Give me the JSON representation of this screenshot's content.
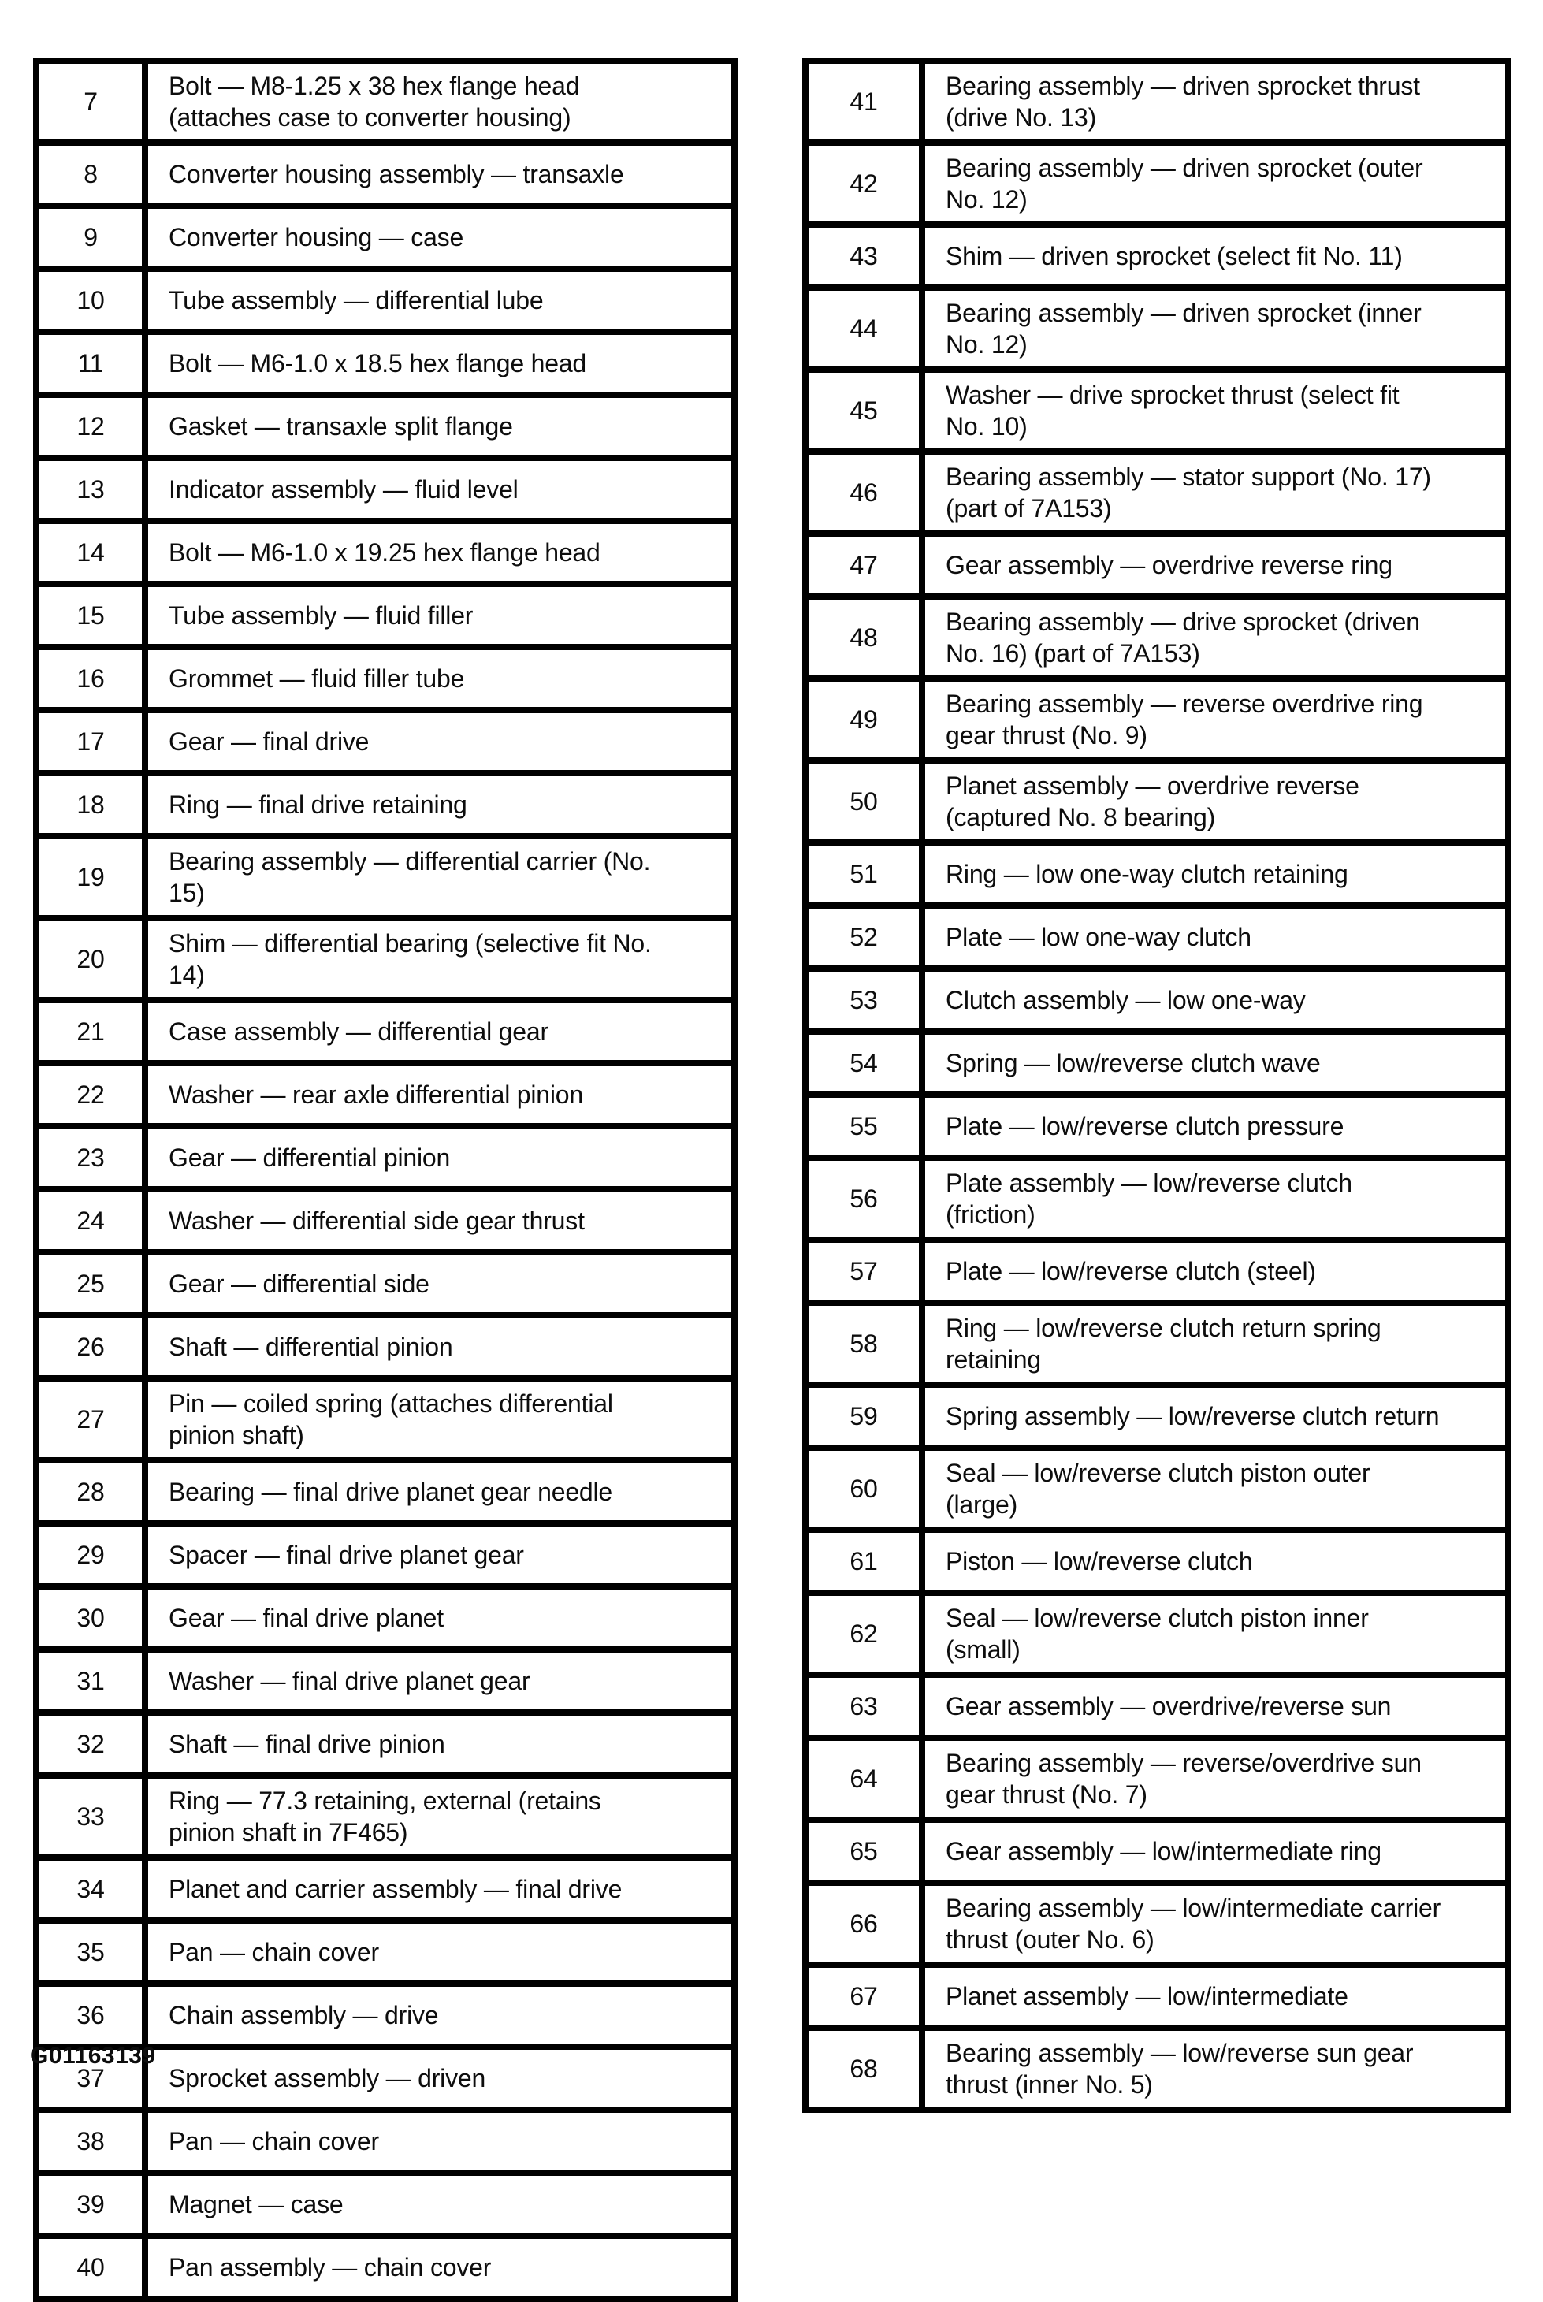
{
  "figure_id": "G01163139",
  "left_table": {
    "rows": [
      {
        "num": "7",
        "desc": "Bolt — M8-1.25 x 38 hex flange head\n(attaches case to converter housing)"
      },
      {
        "num": "8",
        "desc": "Converter housing assembly — transaxle"
      },
      {
        "num": "9",
        "desc": "Converter housing — case"
      },
      {
        "num": "10",
        "desc": "Tube assembly — differential lube"
      },
      {
        "num": "11",
        "desc": "Bolt — M6-1.0 x 18.5 hex flange head"
      },
      {
        "num": "12",
        "desc": "Gasket — transaxle split flange"
      },
      {
        "num": "13",
        "desc": "Indicator assembly — fluid level"
      },
      {
        "num": "14",
        "desc": "Bolt — M6-1.0 x 19.25 hex flange head"
      },
      {
        "num": "15",
        "desc": "Tube assembly — fluid filler"
      },
      {
        "num": "16",
        "desc": "Grommet — fluid filler tube"
      },
      {
        "num": "17",
        "desc": "Gear — final drive"
      },
      {
        "num": "18",
        "desc": "Ring — final drive retaining"
      },
      {
        "num": "19",
        "desc": "Bearing assembly — differential carrier (No.\n15)"
      },
      {
        "num": "20",
        "desc": "Shim — differential bearing (selective fit No.\n14)"
      },
      {
        "num": "21",
        "desc": "Case assembly — differential gear"
      },
      {
        "num": "22",
        "desc": "Washer — rear axle differential pinion"
      },
      {
        "num": "23",
        "desc": "Gear — differential pinion"
      },
      {
        "num": "24",
        "desc": "Washer — differential side gear thrust"
      },
      {
        "num": "25",
        "desc": "Gear — differential side"
      },
      {
        "num": "26",
        "desc": "Shaft — differential pinion"
      },
      {
        "num": "27",
        "desc": "Pin — coiled spring (attaches differential\npinion shaft)"
      },
      {
        "num": "28",
        "desc": "Bearing — final drive planet gear needle"
      },
      {
        "num": "29",
        "desc": "Spacer — final drive planet gear"
      },
      {
        "num": "30",
        "desc": "Gear — final drive planet"
      },
      {
        "num": "31",
        "desc": "Washer — final drive planet gear"
      },
      {
        "num": "32",
        "desc": "Shaft — final drive pinion"
      },
      {
        "num": "33",
        "desc": "Ring — 77.3 retaining, external (retains\npinion shaft in 7F465)"
      },
      {
        "num": "34",
        "desc": "Planet and carrier assembly — final drive"
      },
      {
        "num": "35",
        "desc": "Pan — chain cover"
      },
      {
        "num": "36",
        "desc": "Chain assembly — drive"
      },
      {
        "num": "37",
        "desc": "Sprocket assembly — driven"
      },
      {
        "num": "38",
        "desc": "Pan — chain cover"
      },
      {
        "num": "39",
        "desc": "Magnet — case"
      },
      {
        "num": "40",
        "desc": "Pan assembly — chain cover"
      }
    ]
  },
  "right_table": {
    "rows": [
      {
        "num": "41",
        "desc": "Bearing assembly — driven sprocket thrust\n(drive No. 13)"
      },
      {
        "num": "42",
        "desc": "Bearing assembly — driven sprocket (outer\nNo. 12)"
      },
      {
        "num": "43",
        "desc": "Shim — driven sprocket (select fit No. 11)"
      },
      {
        "num": "44",
        "desc": "Bearing assembly — driven sprocket (inner\nNo. 12)"
      },
      {
        "num": "45",
        "desc": "Washer — drive sprocket thrust (select fit\nNo. 10)"
      },
      {
        "num": "46",
        "desc": "Bearing assembly — stator support (No. 17)\n(part of 7A153)"
      },
      {
        "num": "47",
        "desc": "Gear assembly — overdrive reverse ring"
      },
      {
        "num": "48",
        "desc": "Bearing assembly — drive sprocket (driven\nNo. 16) (part of 7A153)"
      },
      {
        "num": "49",
        "desc": "Bearing assembly — reverse overdrive ring\ngear thrust (No. 9)"
      },
      {
        "num": "50",
        "desc": "Planet assembly — overdrive reverse\n(captured No. 8 bearing)"
      },
      {
        "num": "51",
        "desc": "Ring — low one-way clutch retaining"
      },
      {
        "num": "52",
        "desc": "Plate — low one-way clutch"
      },
      {
        "num": "53",
        "desc": "Clutch assembly — low one-way"
      },
      {
        "num": "54",
        "desc": "Spring — low/reverse clutch wave"
      },
      {
        "num": "55",
        "desc": "Plate — low/reverse clutch pressure"
      },
      {
        "num": "56",
        "desc": "Plate assembly — low/reverse clutch\n(friction)"
      },
      {
        "num": "57",
        "desc": "Plate — low/reverse clutch (steel)"
      },
      {
        "num": "58",
        "desc": "Ring — low/reverse clutch return spring\nretaining"
      },
      {
        "num": "59",
        "desc": "Spring assembly — low/reverse clutch return"
      },
      {
        "num": "60",
        "desc": "Seal — low/reverse clutch piston outer\n(large)"
      },
      {
        "num": "61",
        "desc": "Piston — low/reverse clutch"
      },
      {
        "num": "62",
        "desc": "Seal — low/reverse clutch piston inner\n(small)"
      },
      {
        "num": "63",
        "desc": "Gear assembly — overdrive/reverse sun"
      },
      {
        "num": "64",
        "desc": "Bearing assembly — reverse/overdrive sun\ngear thrust (No. 7)"
      },
      {
        "num": "65",
        "desc": "Gear assembly — low/intermediate ring"
      },
      {
        "num": "66",
        "desc": "Bearing assembly — low/intermediate carrier\nthrust (outer No. 6)"
      },
      {
        "num": "67",
        "desc": "Planet assembly — low/intermediate"
      },
      {
        "num": "68",
        "desc": "Bearing assembly — low/reverse sun gear\nthrust (inner No. 5)"
      }
    ]
  }
}
